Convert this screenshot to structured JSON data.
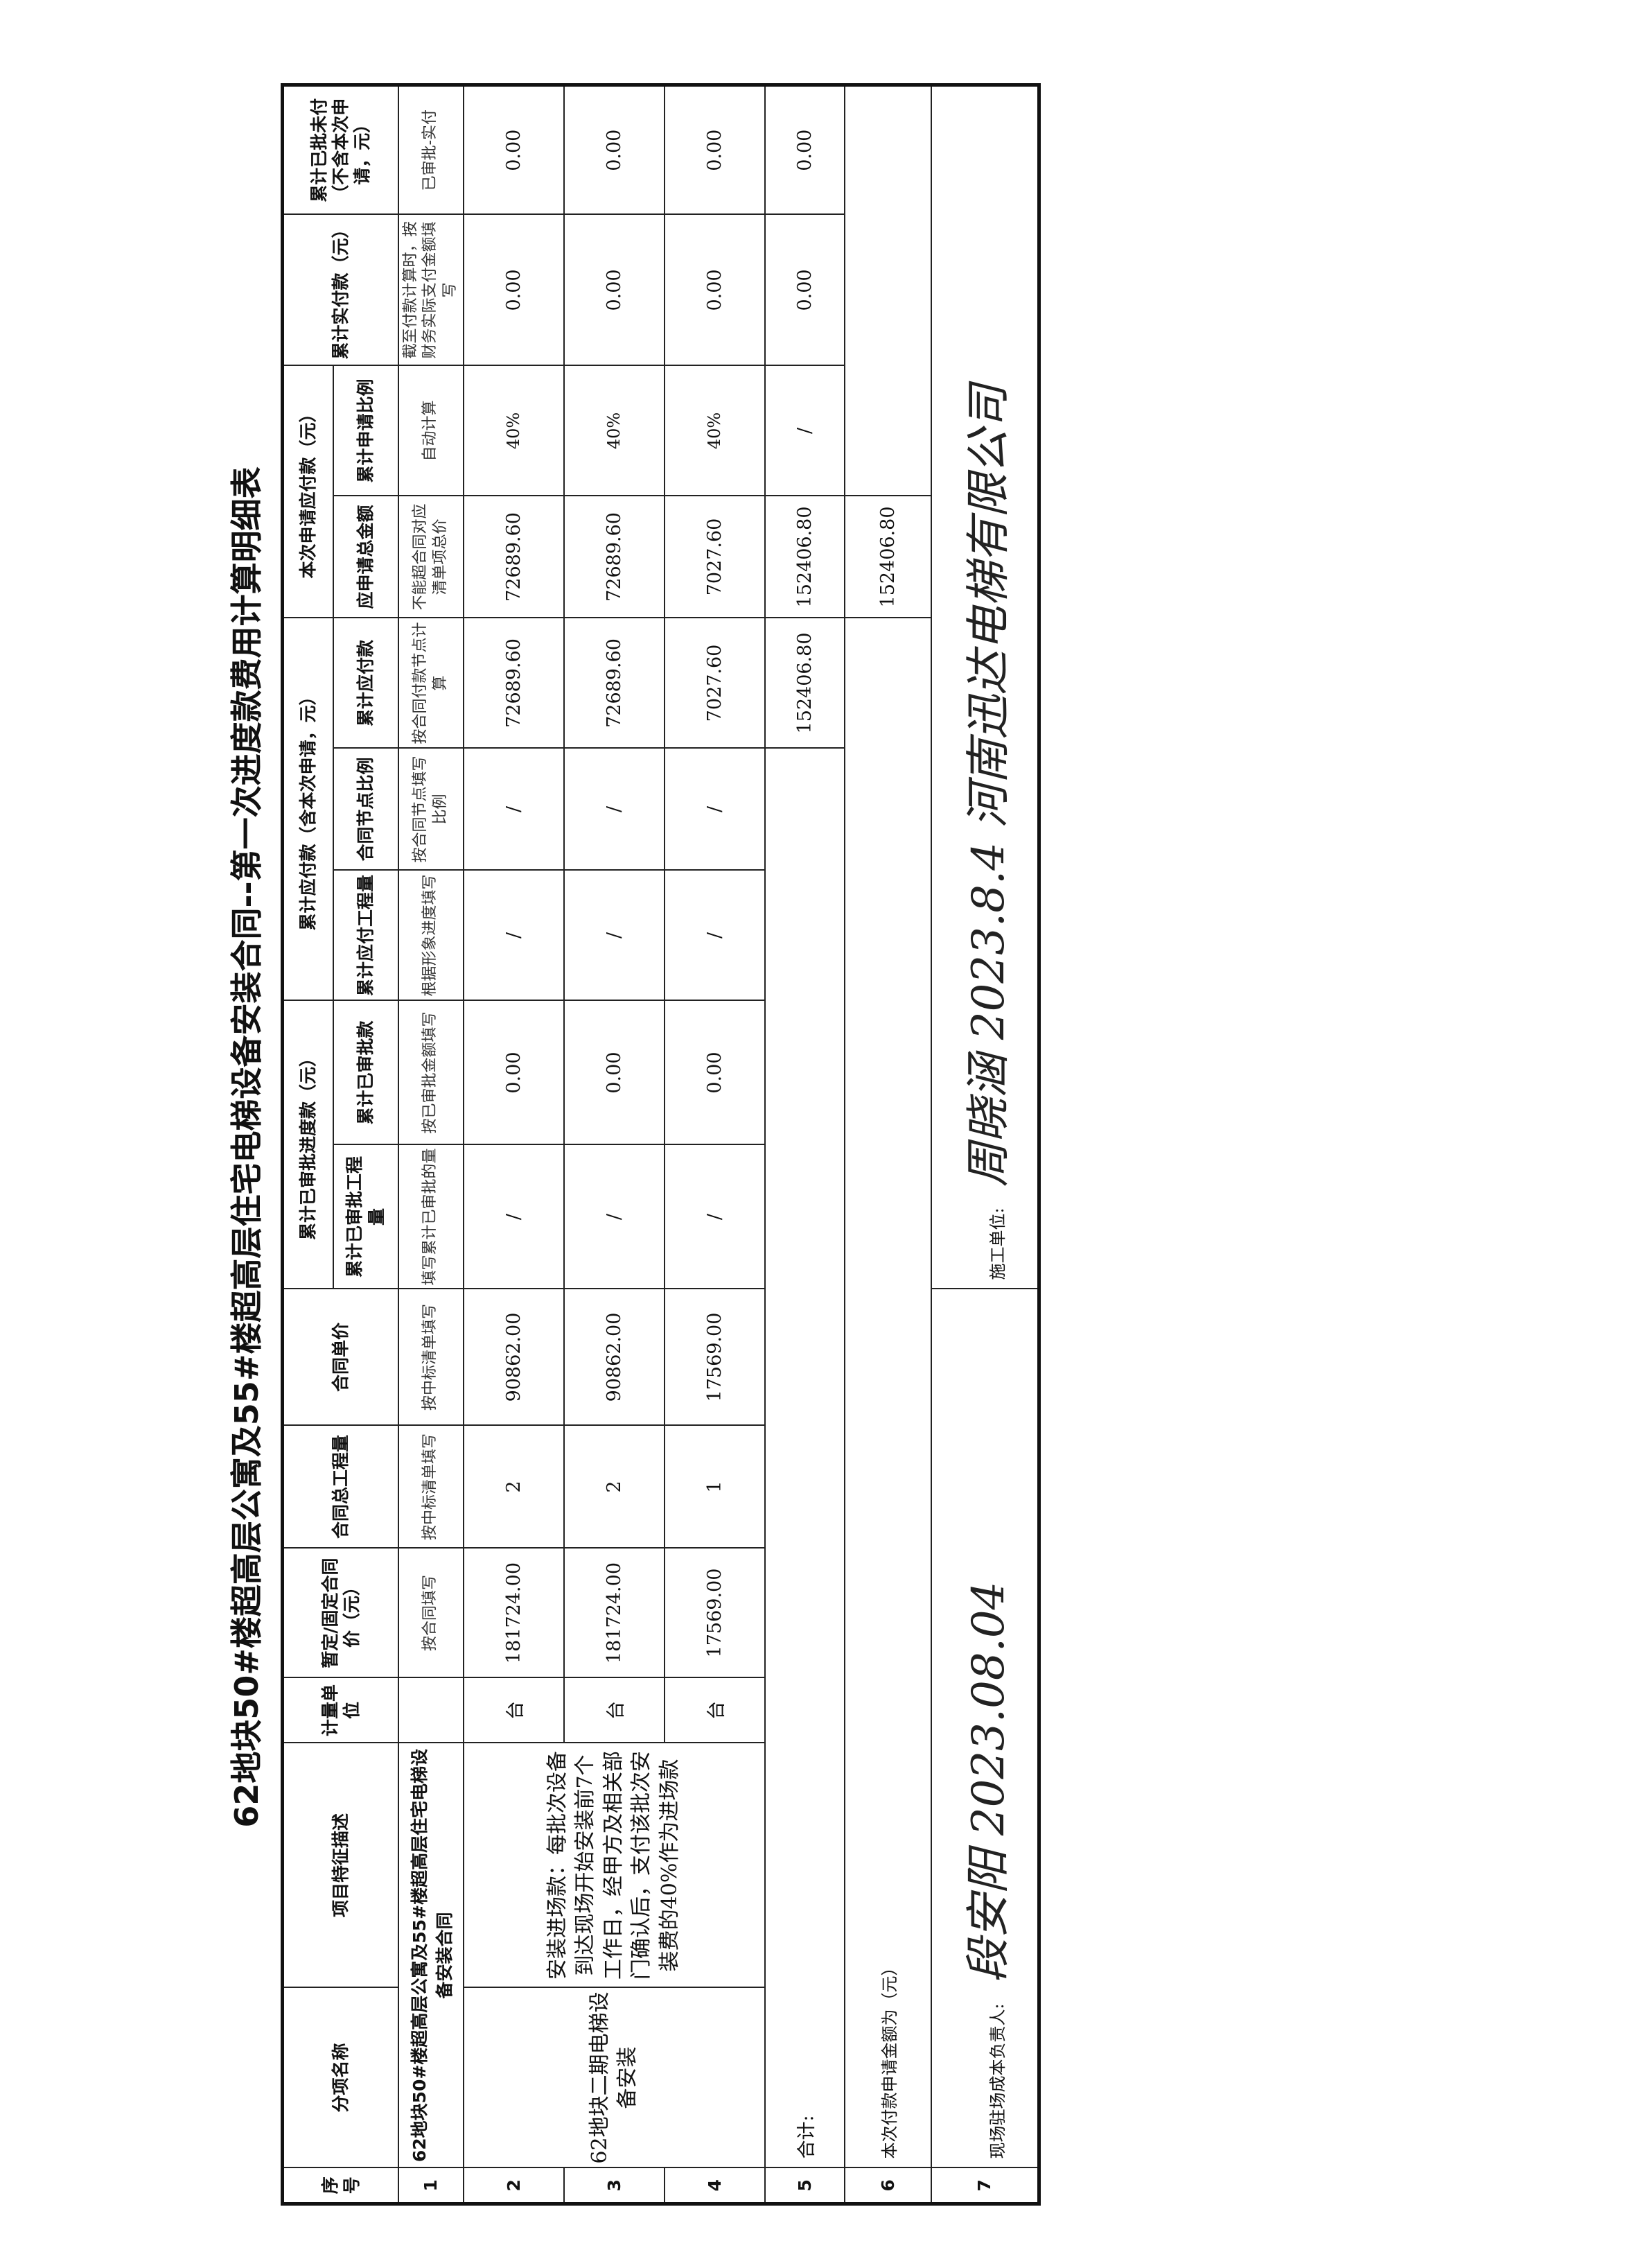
{
  "title": "62地块50#楼超高层公寓及55#楼超高层住宅电梯设备安装合同--第一次进度款费用计算明细表",
  "headers": {
    "seq": "序号",
    "item_name": "分项名称",
    "feature": "项目特征描述",
    "unit": "计量单位",
    "price": "暂定/固定合同价（元）",
    "total_qty": "合同总工程量",
    "unit_price": "合同单价",
    "approved_group": "累计已审批进度款（元）",
    "approved_qty": "累计已审批工程量",
    "approved_amount": "累计已审批款",
    "payable_group": "累计应付款（含本次申请，元）",
    "payable_qty": "累计应付工程量",
    "node_ratio": "合同节点比例",
    "payable_amount": "累计应付款",
    "apply_group": "本次申请应付款（元）",
    "apply_total": "应申请总金额",
    "apply_ratio": "累计申请比例",
    "paid": "累计实付款（元）",
    "unpaid": "累计已批未付（不含本次申请，元）"
  },
  "row1": {
    "seq": "1",
    "name": "62地块50#楼超高层公寓及55#楼超高层住宅电梯设备安装合同",
    "notes": [
      "按合同填写",
      "按中标清单填写",
      "按中标清单填写",
      "填写累计已审批的量",
      "按已审批金额填写",
      "根据形象进度填写",
      "按合同节点填写比例",
      "按合同付款节点计算",
      "不能超合同对应清单项总价",
      "自动计算",
      "截至付款计算时，按财务实际支付金额填写",
      "已审批-实付"
    ]
  },
  "group": {
    "name": "62地块二期电梯设备安装",
    "description": "安装进场款：每批次设备到达现场开始安装前7个工作日，经甲方及相关部门确认后，支付该批次安装费的40%作为进场款"
  },
  "rows": [
    {
      "seq": "2",
      "unit": "台",
      "price": "181724.00",
      "qty": "2",
      "unit_price": "90862.00",
      "approved_qty": "/",
      "approved_amount": "0.00",
      "payable_qty": "/",
      "node_ratio": "/",
      "payable_amount": "72689.60",
      "apply_total": "72689.60",
      "apply_ratio": "40%",
      "paid": "0.00",
      "unpaid": "0.00"
    },
    {
      "seq": "3",
      "unit": "台",
      "price": "181724.00",
      "qty": "2",
      "unit_price": "90862.00",
      "approved_qty": "/",
      "approved_amount": "0.00",
      "payable_qty": "/",
      "node_ratio": "/",
      "payable_amount": "72689.60",
      "apply_total": "72689.60",
      "apply_ratio": "40%",
      "paid": "0.00",
      "unpaid": "0.00"
    },
    {
      "seq": "4",
      "unit": "台",
      "price": "17569.00",
      "qty": "1",
      "unit_price": "17569.00",
      "approved_qty": "/",
      "approved_amount": "0.00",
      "payable_qty": "/",
      "node_ratio": "/",
      "payable_amount": "7027.60",
      "apply_total": "7027.60",
      "apply_ratio": "40%",
      "paid": "0.00",
      "unpaid": "0.00"
    }
  ],
  "total": {
    "seq": "5",
    "label": "合计:",
    "payable_amount": "152406.80",
    "apply_total": "152406.80",
    "apply_ratio": "/",
    "paid": "0.00",
    "unpaid": "0.00"
  },
  "request": {
    "seq": "6",
    "label": "本次付款申请金额为（元）",
    "apply_total": "152406.80"
  },
  "sign": {
    "seq": "7",
    "manager_label": "现场驻场成本负责人:",
    "manager_signature": "段安阳  2023.08.04",
    "contractor_label": "施工单位:",
    "contractor_signature": "周晓涵  2023.8.4  河南迅达电梯有限公司"
  }
}
